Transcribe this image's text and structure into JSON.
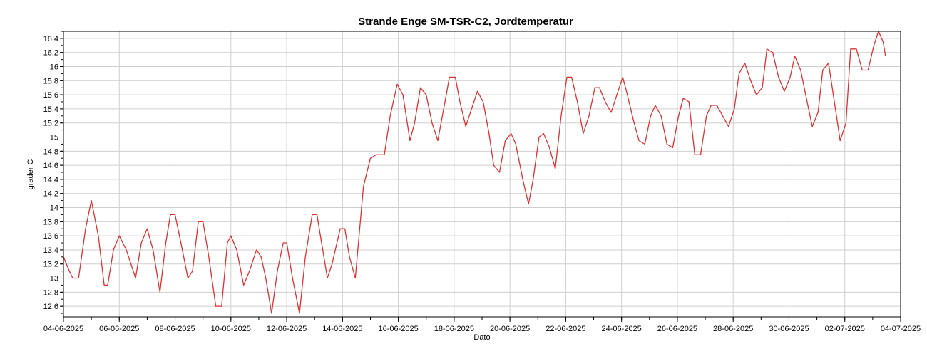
{
  "chart_data": {
    "type": "line",
    "title": "Strande Enge SM-TSR-C2, Jordtemperatur",
    "xlabel": "Dato",
    "ylabel": "grader C",
    "grid": true,
    "legend": "none",
    "line_color": "#e03030",
    "xlim": [
      "04-06-2025",
      "04-07-2025"
    ],
    "ylim": [
      12.45,
      16.5
    ],
    "x_ticks": [
      "04-06-2025",
      "06-06-2025",
      "08-06-2025",
      "10-06-2025",
      "12-06-2025",
      "14-06-2025",
      "16-06-2025",
      "18-06-2025",
      "20-06-2025",
      "22-06-2025",
      "24-06-2025",
      "26-06-2025",
      "28-06-2025",
      "30-06-2025",
      "02-07-2025",
      "04-07-2025"
    ],
    "y_ticks": [
      "12,6",
      "12,8",
      "13",
      "13,2",
      "13,4",
      "13,6",
      "13,8",
      "14",
      "14,2",
      "14,4",
      "14,6",
      "14,8",
      "15",
      "15,2",
      "15,4",
      "15,6",
      "15,8",
      "16",
      "16,2",
      "16,4"
    ],
    "series": [
      {
        "x": [
          "04-06-2025 00:00",
          "04-06-2025 05:00",
          "04-06-2025 08:00",
          "04-06-2025 13:00",
          "04-06-2025 19:00",
          "05-06-2025 00:00",
          "05-06-2025 06:00",
          "05-06-2025 11:00",
          "05-06-2025 14:00",
          "05-06-2025 19:00",
          "06-06-2025 00:00",
          "06-06-2025 06:00",
          "06-06-2025 10:00",
          "06-06-2025 14:00",
          "06-06-2025 19:00",
          "07-06-2025 00:00",
          "07-06-2025 05:00",
          "07-06-2025 11:00",
          "07-06-2025 16:00",
          "07-06-2025 20:00",
          "08-06-2025 00:00",
          "08-06-2025 05:00",
          "08-06-2025 11:00",
          "08-06-2025 15:00",
          "08-06-2025 20:00",
          "09-06-2025 00:00",
          "09-06-2025 05:00",
          "09-06-2025 11:00",
          "09-06-2025 16:00",
          "09-06-2025 21:00",
          "10-06-2025 00:00",
          "10-06-2025 05:00",
          "10-06-2025 11:00",
          "10-06-2025 16:00",
          "10-06-2025 22:00",
          "11-06-2025 02:00",
          "11-06-2025 06:00",
          "11-06-2025 11:00",
          "11-06-2025 16:00",
          "11-06-2025 21:00",
          "12-06-2025 00:00",
          "12-06-2025 05:00",
          "12-06-2025 11:00",
          "12-06-2025 16:00",
          "12-06-2025 22:00",
          "13-06-2025 02:00",
          "13-06-2025 06:00",
          "13-06-2025 11:00",
          "13-06-2025 15:00",
          "13-06-2025 22:00",
          "14-06-2025 02:00",
          "14-06-2025 06:00",
          "14-06-2025 11:00",
          "14-06-2025 18:00",
          "15-06-2025 00:00",
          "15-06-2025 05:00",
          "15-06-2025 12:00",
          "15-06-2025 17:00",
          "15-06-2025 23:00",
          "16-06-2025 04:00",
          "16-06-2025 10:00",
          "16-06-2025 14:00",
          "16-06-2025 19:00",
          "17-06-2025 00:00",
          "17-06-2025 05:00",
          "17-06-2025 10:00",
          "17-06-2025 15:00",
          "17-06-2025 20:00",
          "18-06-2025 01:00",
          "18-06-2025 05:00",
          "18-06-2025 10:00",
          "18-06-2025 15:00",
          "18-06-2025 20:00",
          "19-06-2025 01:00",
          "19-06-2025 06:00",
          "19-06-2025 10:00",
          "19-06-2025 15:00",
          "19-06-2025 20:00",
          "20-06-2025 01:00",
          "20-06-2025 05:00",
          "20-06-2025 11:00",
          "20-06-2025 16:00",
          "20-06-2025 20:00",
          "21-06-2025 01:00",
          "21-06-2025 05:00",
          "21-06-2025 10:00",
          "21-06-2025 15:00",
          "21-06-2025 20:00",
          "22-06-2025 01:00",
          "22-06-2025 05:00",
          "22-06-2025 10:00",
          "22-06-2025 15:00",
          "22-06-2025 20:00",
          "23-06-2025 01:00",
          "23-06-2025 05:00",
          "23-06-2025 10:00",
          "23-06-2025 15:00",
          "23-06-2025 20:00",
          "24-06-2025 01:00",
          "24-06-2025 05:00",
          "24-06-2025 10:00",
          "24-06-2025 15:00",
          "24-06-2025 20:00",
          "25-06-2025 01:00",
          "25-06-2025 05:00",
          "25-06-2025 10:00",
          "25-06-2025 15:00",
          "25-06-2025 20:00",
          "26-06-2025 01:00",
          "26-06-2025 05:00",
          "26-06-2025 10:00",
          "26-06-2025 15:00",
          "26-06-2025 20:00",
          "27-06-2025 01:00",
          "27-06-2025 05:00",
          "27-06-2025 10:00",
          "27-06-2025 15:00",
          "27-06-2025 20:00",
          "28-06-2025 01:00",
          "28-06-2025 05:00",
          "28-06-2025 10:00",
          "28-06-2025 15:00",
          "28-06-2025 20:00",
          "29-06-2025 01:00",
          "29-06-2025 05:00",
          "29-06-2025 10:00",
          "29-06-2025 15:00",
          "29-06-2025 20:00",
          "30-06-2025 01:00",
          "30-06-2025 05:00",
          "30-06-2025 10:00",
          "30-06-2025 15:00",
          "30-06-2025 20:00",
          "01-07-2025 01:00",
          "01-07-2025 05:00",
          "01-07-2025 10:00",
          "01-07-2025 15:00",
          "01-07-2025 20:00",
          "02-07-2025 01:00",
          "02-07-2025 05:00",
          "02-07-2025 10:00",
          "02-07-2025 15:00",
          "02-07-2025 20:00",
          "03-07-2025 01:00",
          "03-07-2025 05:00",
          "03-07-2025 09:00",
          "03-07-2025 11:00"
        ],
        "y": [
          13.3,
          13.1,
          13.0,
          13.0,
          13.7,
          14.1,
          13.6,
          12.9,
          12.9,
          13.4,
          13.6,
          13.4,
          13.2,
          13.0,
          13.5,
          13.7,
          13.4,
          12.8,
          13.5,
          13.9,
          13.9,
          13.5,
          13.0,
          13.1,
          13.8,
          13.8,
          13.3,
          12.6,
          12.6,
          13.5,
          13.6,
          13.4,
          12.9,
          13.1,
          13.4,
          13.3,
          13.0,
          12.5,
          13.1,
          13.5,
          13.5,
          13.0,
          12.5,
          13.3,
          13.9,
          13.9,
          13.5,
          13.0,
          13.2,
          13.7,
          13.7,
          13.3,
          13.0,
          14.3,
          14.7,
          14.75,
          14.75,
          15.3,
          15.75,
          15.6,
          14.95,
          15.2,
          15.7,
          15.6,
          15.2,
          14.95,
          15.4,
          15.85,
          15.85,
          15.5,
          15.15,
          15.4,
          15.65,
          15.5,
          15.05,
          14.6,
          14.5,
          14.95,
          15.05,
          14.9,
          14.4,
          14.05,
          14.4,
          15.0,
          15.05,
          14.85,
          14.55,
          15.3,
          15.85,
          15.85,
          15.5,
          15.05,
          15.3,
          15.7,
          15.7,
          15.5,
          15.35,
          15.6,
          15.85,
          15.6,
          15.25,
          14.95,
          14.9,
          15.3,
          15.45,
          15.3,
          14.9,
          14.85,
          15.3,
          15.55,
          15.5,
          14.75,
          14.75,
          15.3,
          15.45,
          15.45,
          15.3,
          15.15,
          15.4,
          15.9,
          16.05,
          15.8,
          15.6,
          15.7,
          16.25,
          16.2,
          15.85,
          15.65,
          15.85,
          16.15,
          15.95,
          15.55,
          15.15,
          15.35,
          15.95,
          16.05,
          15.5,
          14.95,
          15.2,
          16.25,
          16.25,
          15.95,
          15.95,
          16.3,
          16.5,
          16.35,
          16.15
        ]
      }
    ]
  }
}
